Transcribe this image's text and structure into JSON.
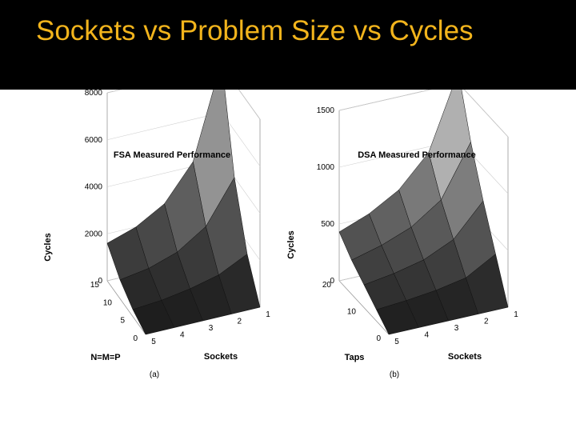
{
  "slide": {
    "title": "Sockets vs Problem Size vs Cycles",
    "colors": {
      "title_bar": "#000000",
      "title_text": "#f2b41c",
      "background": "#ffffff"
    }
  },
  "chart_data": [
    {
      "type": "surface3d",
      "title": "FSA Measured Performance",
      "caption": "(a)",
      "xlabel": "Sockets",
      "ylabel": "N=M=P",
      "zlabel": "Cycles",
      "x_ticks": [
        "1",
        "2",
        "3",
        "4",
        "5"
      ],
      "y_ticks": [
        "0",
        "5",
        "10",
        "15"
      ],
      "z_ticks": [
        "0",
        "2000",
        "4000",
        "6000",
        "8000"
      ],
      "xlim": [
        1,
        5
      ],
      "ylim": [
        0,
        15
      ],
      "zlim": [
        0,
        8000
      ],
      "surface": {
        "sockets": [
          1,
          2,
          3,
          4,
          5
        ],
        "size": [
          0,
          5,
          10,
          15
        ],
        "cycles": [
          [
            0,
            1500,
            4000,
            8200
          ],
          [
            0,
            900,
            2200,
            4200
          ],
          [
            0,
            600,
            1400,
            2700
          ],
          [
            0,
            400,
            1000,
            2000
          ],
          [
            0,
            300,
            800,
            1600
          ]
        ]
      }
    },
    {
      "type": "surface3d",
      "title": "DSA Measured Performance",
      "caption": "(b)",
      "xlabel": "Sockets",
      "ylabel": "Taps",
      "zlabel": "Cycles",
      "x_ticks": [
        "1",
        "2",
        "3",
        "4",
        "5"
      ],
      "y_ticks": [
        "0",
        "10",
        "20"
      ],
      "z_ticks": [
        "0",
        "500",
        "1000",
        "1500"
      ],
      "xlim": [
        1,
        5
      ],
      "ylim": [
        0,
        20
      ],
      "zlim": [
        0,
        1500
      ],
      "surface": {
        "sockets": [
          1,
          2,
          3,
          4,
          5
        ],
        "taps": [
          0,
          5,
          10,
          15,
          20
        ],
        "cycles": [
          [
            0,
            350,
            700,
            1100,
            1600
          ],
          [
            0,
            200,
            420,
            650,
            950
          ],
          [
            0,
            150,
            300,
            470,
            680
          ],
          [
            0,
            120,
            240,
            370,
            530
          ],
          [
            0,
            100,
            200,
            300,
            430
          ]
        ]
      }
    }
  ]
}
